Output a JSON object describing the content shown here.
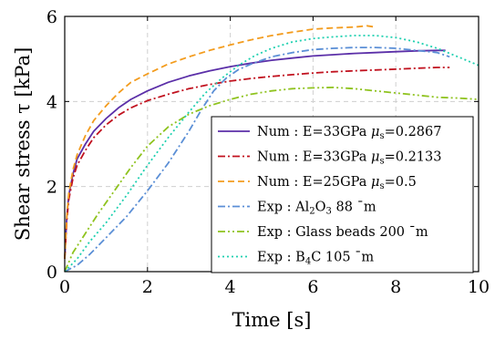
{
  "chart_data": {
    "type": "line",
    "xlabel": "Time [s]",
    "ylabel": "Shear stress τ [kPa]",
    "xlim": [
      0,
      10
    ],
    "ylim": [
      0,
      6
    ],
    "xticks": [
      "0",
      "2",
      "4",
      "6",
      "8",
      "10"
    ],
    "yticks": [
      "0",
      "2",
      "4",
      "6"
    ],
    "grid": true,
    "legend_position": "bottom-right",
    "series": [
      {
        "name": "Num : E=33GPa μs=0.2867",
        "color": "#5b2fa8",
        "dash": "solid",
        "x": [
          0,
          0.05,
          0.1,
          0.2,
          0.3,
          0.5,
          0.7,
          1.0,
          1.3,
          1.6,
          2.0,
          2.5,
          3.0,
          3.5,
          4.0,
          4.5,
          5.0,
          5.5,
          6.0,
          6.5,
          7.0,
          7.5,
          8.0,
          8.5,
          9.0,
          9.2
        ],
        "y": [
          0.3,
          1.3,
          1.8,
          2.3,
          2.65,
          3.0,
          3.3,
          3.6,
          3.85,
          4.05,
          4.25,
          4.45,
          4.6,
          4.72,
          4.82,
          4.9,
          4.97,
          5.02,
          5.07,
          5.1,
          5.13,
          5.15,
          5.17,
          5.19,
          5.2,
          5.2
        ]
      },
      {
        "name": "Num : E=33GPa μs=0.2133",
        "color": "#c1121f",
        "dash": "dashdot",
        "x": [
          0,
          0.05,
          0.1,
          0.2,
          0.3,
          0.5,
          0.7,
          1.0,
          1.3,
          1.6,
          2.0,
          2.5,
          3.0,
          3.5,
          4.0,
          4.5,
          5.0,
          5.5,
          6.0,
          6.5,
          7.0,
          7.5,
          8.0,
          8.5,
          9.0,
          9.3
        ],
        "y": [
          0.3,
          1.2,
          1.7,
          2.2,
          2.5,
          2.85,
          3.15,
          3.45,
          3.68,
          3.85,
          4.02,
          4.17,
          4.3,
          4.4,
          4.48,
          4.54,
          4.59,
          4.63,
          4.67,
          4.7,
          4.72,
          4.74,
          4.76,
          4.78,
          4.8,
          4.8
        ]
      },
      {
        "name": "Num : E=25GPa μs=0.5",
        "color": "#f39c1e",
        "dash": "dashed",
        "x": [
          0,
          0.05,
          0.1,
          0.2,
          0.3,
          0.5,
          0.7,
          1.0,
          1.3,
          1.6,
          2.0,
          2.5,
          3.0,
          3.5,
          4.0,
          4.5,
          5.0,
          5.5,
          6.0,
          6.5,
          7.0,
          7.3,
          7.5
        ],
        "y": [
          0.3,
          1.3,
          1.85,
          2.4,
          2.75,
          3.2,
          3.55,
          3.9,
          4.2,
          4.45,
          4.65,
          4.88,
          5.05,
          5.2,
          5.33,
          5.45,
          5.55,
          5.63,
          5.7,
          5.73,
          5.75,
          5.78,
          5.75
        ]
      },
      {
        "name": "Exp : Al2O3 88 ¯m",
        "color": "#5b8fd6",
        "dash": "dashdot",
        "x": [
          0,
          0.3,
          0.6,
          1.0,
          1.5,
          2.0,
          2.5,
          3.0,
          3.3,
          3.6,
          3.9,
          4.2,
          4.5,
          5.0,
          5.5,
          6.0,
          6.5,
          7.0,
          7.5,
          8.0,
          8.5,
          9.0,
          9.3
        ],
        "y": [
          0,
          0.15,
          0.4,
          0.8,
          1.3,
          1.9,
          2.55,
          3.3,
          3.8,
          4.25,
          4.55,
          4.75,
          4.88,
          5.05,
          5.15,
          5.22,
          5.25,
          5.27,
          5.27,
          5.25,
          5.2,
          5.15,
          5.05
        ]
      },
      {
        "name": "Exp : Glass beads 200 ¯m",
        "color": "#8fc31f",
        "dash": "dashdotdot",
        "x": [
          0,
          0.2,
          0.5,
          0.8,
          1.2,
          1.6,
          2.0,
          2.5,
          3.0,
          3.5,
          4.0,
          4.5,
          5.0,
          5.5,
          6.0,
          6.5,
          7.0,
          7.5,
          8.0,
          8.5,
          9.0,
          9.5,
          10.0
        ],
        "y": [
          0,
          0.45,
          0.9,
          1.35,
          1.9,
          2.45,
          2.95,
          3.4,
          3.7,
          3.9,
          4.05,
          4.17,
          4.25,
          4.3,
          4.32,
          4.33,
          4.3,
          4.25,
          4.2,
          4.15,
          4.1,
          4.08,
          4.05
        ]
      },
      {
        "name": "Exp : B4C 105 ¯m",
        "color": "#1fd0b0",
        "dash": "dotted",
        "x": [
          0,
          0.3,
          0.6,
          1.0,
          1.5,
          2.0,
          2.5,
          3.0,
          3.4,
          3.8,
          4.2,
          4.6,
          5.0,
          5.5,
          6.0,
          6.5,
          7.0,
          7.5,
          8.0,
          8.5,
          9.0,
          9.5,
          10.0
        ],
        "y": [
          0,
          0.3,
          0.7,
          1.15,
          1.8,
          2.5,
          3.15,
          3.75,
          4.2,
          4.55,
          4.85,
          5.08,
          5.25,
          5.4,
          5.48,
          5.52,
          5.55,
          5.55,
          5.5,
          5.4,
          5.25,
          5.05,
          4.85
        ]
      }
    ]
  },
  "legend": [
    {
      "prefix": "Num : E=33GPa ",
      "mu": "μ",
      "mu_sub": "s",
      "suffix": "=0.2867"
    },
    {
      "prefix": "Num : E=33GPa ",
      "mu": "μ",
      "mu_sub": "s",
      "suffix": "=0.2133"
    },
    {
      "prefix": "Num : E=25GPa ",
      "mu": "μ",
      "mu_sub": "s",
      "suffix": "=0.5"
    },
    {
      "prefix": "Exp : Al",
      "sub1": "2",
      "mid": "O",
      "sub2": "3",
      "suffix": " 88 ¯m"
    },
    {
      "prefix": "Exp : Glass beads 200 ¯m"
    },
    {
      "prefix": "Exp : B",
      "sub1": "4",
      "suffix": "C 105 ¯m"
    }
  ]
}
